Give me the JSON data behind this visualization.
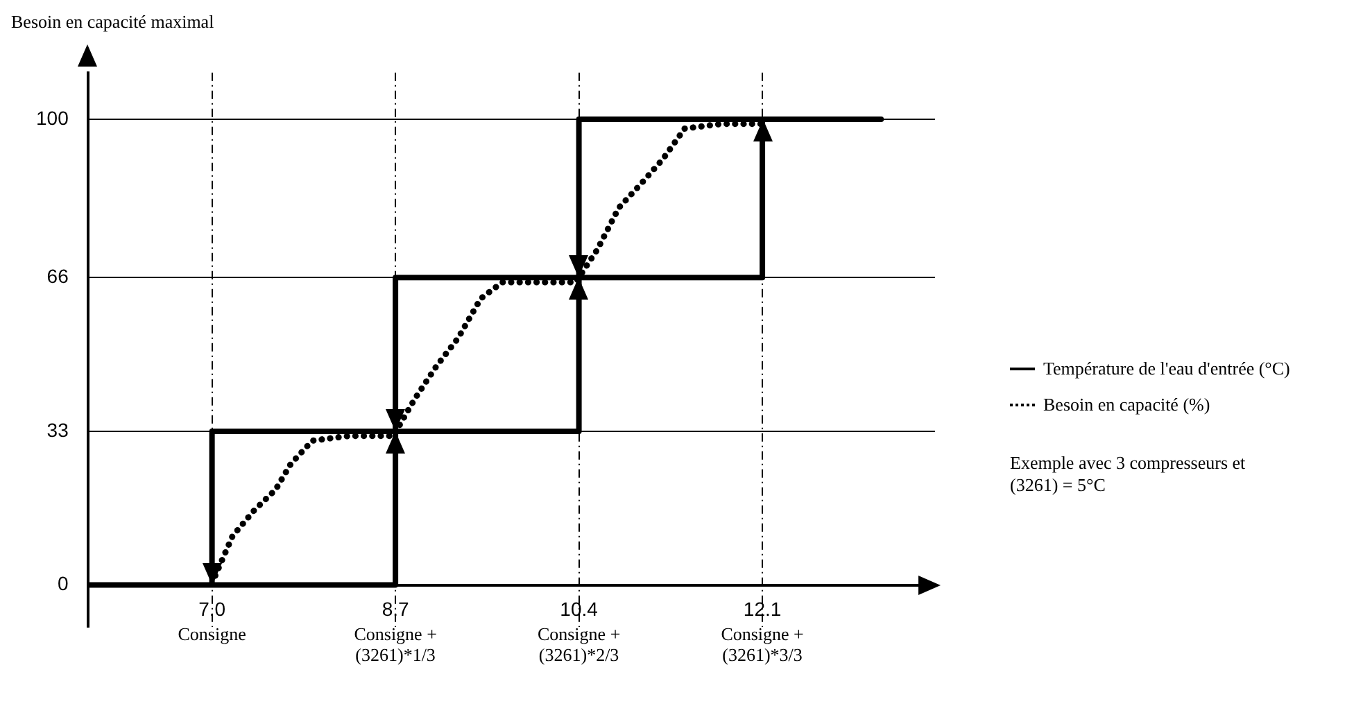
{
  "chart_data": {
    "type": "line",
    "ylabel": "Besoin en capacité maximal",
    "xlim": [
      5.85,
      13.7
    ],
    "ylim": [
      -9,
      110
    ],
    "xticks": [
      {
        "value": 7,
        "label": "7.0"
      },
      8.7,
      10.4,
      12.1
    ],
    "yticks": [
      0,
      33,
      66,
      100
    ],
    "grid": true,
    "legend": "right",
    "series": [
      {
        "name": "Température de l'eau d'entrée (°C)",
        "color": "#000000",
        "line_style": "solid",
        "marker": "none",
        "x": [
          5.85,
          8.7,
          8.7,
          10.4,
          10.4,
          12.1,
          12.1,
          13.2,
          10.4,
          10.4,
          8.7,
          8.7,
          7.0,
          7.0
        ],
        "values": [
          0,
          0,
          33,
          33,
          66,
          66,
          100,
          100,
          100,
          66,
          66,
          33,
          33,
          0
        ]
      },
      {
        "name": "Besoin en capacité (%)",
        "color": "#000000",
        "line_style": "dotted",
        "marker": "none",
        "x": [
          7.03,
          7.19,
          7.39,
          7.59,
          7.73,
          7.93,
          8.27,
          8.68,
          8.88,
          9.08,
          9.28,
          9.49,
          9.69,
          10.03,
          10.37,
          10.57,
          10.77,
          10.97,
          11.18,
          11.38,
          11.72,
          12.1
        ],
        "values": [
          2,
          10.5,
          16,
          20.5,
          26,
          31,
          32,
          32,
          40,
          47,
          53,
          61.5,
          65,
          65,
          65,
          72,
          81,
          86,
          91.5,
          98,
          99,
          99
        ]
      }
    ],
    "annotations": [
      "Consigne",
      "Consigne +\n(3261)*1/3",
      "Consigne +\n(3261)*2/3",
      "Consigne +\n(3261)*3/3",
      "Exemple avec 3 compresseurs et\n(3261) = 5°C"
    ]
  }
}
